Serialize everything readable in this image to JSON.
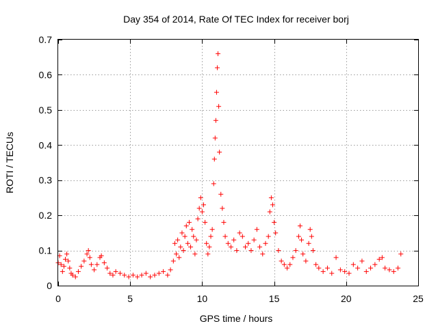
{
  "chart_data": {
    "type": "scatter",
    "title": "Day 354 of 2014, Rate Of TEC Index for receiver borj",
    "xlabel": "GPS time / hours",
    "ylabel": "ROTI / TECUs",
    "xlim": [
      0,
      25
    ],
    "ylim": [
      0,
      0.7
    ],
    "xticks": [
      0,
      5,
      10,
      15,
      20,
      25
    ],
    "xtick_labels": [
      "0",
      "5",
      "10",
      "15",
      "20",
      "25"
    ],
    "yticks": [
      0,
      0.1,
      0.2,
      0.3,
      0.4,
      0.5,
      0.6,
      0.7
    ],
    "ytick_labels": [
      "0",
      "0.1",
      "0.2",
      "0.3",
      "0.4",
      "0.5",
      "0.6",
      "0.7"
    ],
    "grid": true,
    "marker": "+",
    "color": "#ff0000",
    "series": [
      {
        "name": "ROTI",
        "x": [
          0.0,
          0.1,
          0.2,
          0.3,
          0.4,
          0.5,
          0.6,
          0.7,
          0.8,
          0.9,
          1.0,
          1.2,
          1.4,
          1.6,
          1.8,
          2.0,
          2.1,
          2.2,
          2.3,
          2.5,
          2.7,
          2.9,
          3.0,
          3.2,
          3.4,
          3.6,
          3.8,
          4.0,
          4.3,
          4.6,
          4.9,
          5.2,
          5.5,
          5.8,
          6.1,
          6.4,
          6.7,
          7.0,
          7.3,
          7.6,
          7.8,
          8.0,
          8.1,
          8.2,
          8.3,
          8.4,
          8.5,
          8.6,
          8.7,
          8.8,
          8.9,
          9.0,
          9.1,
          9.2,
          9.3,
          9.4,
          9.5,
          9.6,
          9.7,
          9.8,
          9.9,
          10.0,
          10.1,
          10.2,
          10.3,
          10.4,
          10.5,
          10.6,
          10.7,
          10.8,
          10.85,
          10.9,
          10.95,
          11.0,
          11.05,
          11.1,
          11.15,
          11.2,
          11.3,
          11.4,
          11.5,
          11.6,
          11.8,
          12.0,
          12.2,
          12.4,
          12.6,
          12.8,
          13.0,
          13.2,
          13.4,
          13.6,
          13.8,
          14.0,
          14.2,
          14.4,
          14.6,
          14.7,
          14.8,
          14.9,
          15.0,
          15.1,
          15.3,
          15.5,
          15.7,
          15.9,
          16.1,
          16.3,
          16.5,
          16.7,
          16.8,
          16.9,
          17.0,
          17.2,
          17.4,
          17.5,
          17.6,
          17.7,
          17.9,
          18.1,
          18.4,
          18.7,
          19.0,
          19.3,
          19.6,
          19.9,
          20.2,
          20.5,
          20.8,
          21.1,
          21.4,
          21.7,
          22.0,
          22.3,
          22.5,
          22.7,
          23.0,
          23.3,
          23.6,
          23.8
        ],
        "y": [
          0.065,
          0.085,
          0.06,
          0.04,
          0.055,
          0.075,
          0.09,
          0.07,
          0.05,
          0.035,
          0.03,
          0.025,
          0.04,
          0.055,
          0.07,
          0.09,
          0.1,
          0.08,
          0.06,
          0.045,
          0.06,
          0.08,
          0.085,
          0.065,
          0.05,
          0.035,
          0.03,
          0.04,
          0.035,
          0.03,
          0.025,
          0.03,
          0.025,
          0.03,
          0.035,
          0.025,
          0.03,
          0.035,
          0.04,
          0.03,
          0.045,
          0.07,
          0.12,
          0.09,
          0.13,
          0.08,
          0.11,
          0.15,
          0.1,
          0.14,
          0.17,
          0.12,
          0.18,
          0.11,
          0.16,
          0.14,
          0.09,
          0.13,
          0.19,
          0.22,
          0.25,
          0.21,
          0.23,
          0.18,
          0.12,
          0.09,
          0.11,
          0.14,
          0.16,
          0.29,
          0.36,
          0.42,
          0.47,
          0.55,
          0.62,
          0.66,
          0.51,
          0.38,
          0.26,
          0.22,
          0.18,
          0.14,
          0.12,
          0.11,
          0.13,
          0.1,
          0.15,
          0.14,
          0.11,
          0.12,
          0.1,
          0.13,
          0.16,
          0.11,
          0.09,
          0.12,
          0.14,
          0.21,
          0.25,
          0.23,
          0.18,
          0.15,
          0.1,
          0.07,
          0.06,
          0.05,
          0.06,
          0.08,
          0.1,
          0.14,
          0.17,
          0.13,
          0.09,
          0.07,
          0.12,
          0.16,
          0.14,
          0.1,
          0.06,
          0.05,
          0.04,
          0.05,
          0.035,
          0.08,
          0.045,
          0.04,
          0.035,
          0.06,
          0.05,
          0.07,
          0.04,
          0.05,
          0.06,
          0.075,
          0.08,
          0.05,
          0.045,
          0.04,
          0.05,
          0.09
        ]
      }
    ]
  }
}
